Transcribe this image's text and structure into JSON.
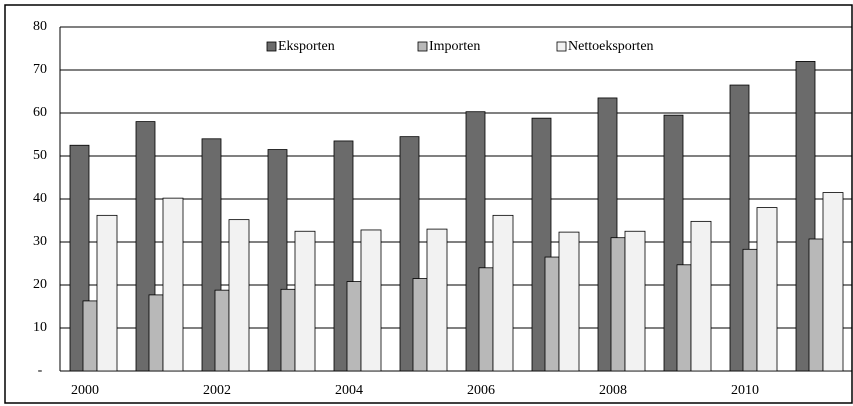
{
  "chart_data": {
    "type": "bar",
    "categories": [
      "2000",
      null,
      "2002",
      null,
      "2004",
      null,
      "2006",
      null,
      "2008",
      null,
      "2010",
      null
    ],
    "series": [
      {
        "name": "Eksporten",
        "color": "#6b6b6b",
        "values": [
          52.5,
          58,
          54,
          51.5,
          53.5,
          54.5,
          60.3,
          58.8,
          63.5,
          59.5,
          66.5,
          72
        ]
      },
      {
        "name": "Importen",
        "color": "#b8b8b8",
        "values": [
          16.3,
          17.7,
          18.8,
          19,
          20.8,
          21.5,
          24,
          26.5,
          31,
          24.7,
          28.3,
          30.7
        ]
      },
      {
        "name": "Nettoeksporten",
        "color": "#f2f2f2",
        "values": [
          36.2,
          40.2,
          35.2,
          32.5,
          32.8,
          33,
          36.2,
          32.3,
          32.5,
          34.8,
          38,
          41.5
        ]
      }
    ],
    "ylim": [
      0,
      80
    ],
    "yticks": [
      {
        "value": 0,
        "label": "-"
      },
      10,
      20,
      30,
      40,
      50,
      60,
      70,
      80
    ],
    "grid": true,
    "legend": "top"
  }
}
